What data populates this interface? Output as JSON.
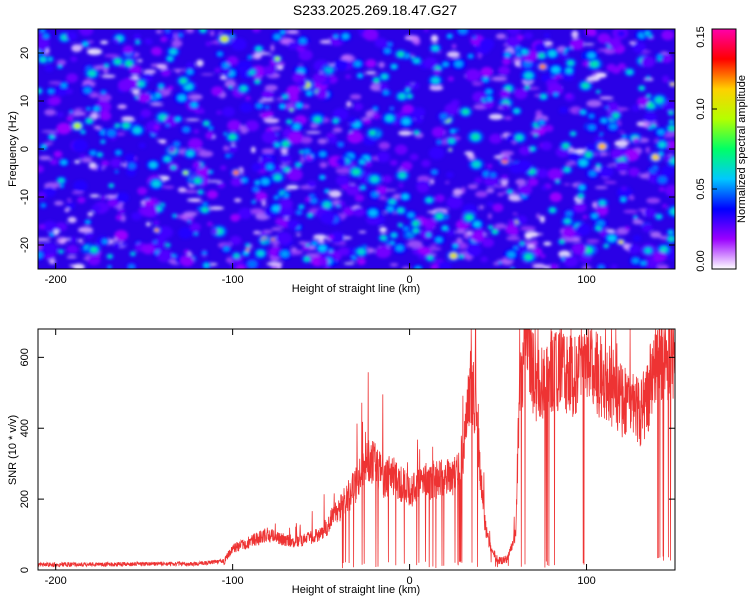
{
  "title": "S233.2025.269.18.47.G27",
  "chart_data": [
    {
      "type": "heatmap",
      "xlabel": "Height of straight line (km)",
      "ylabel": "Frequency (Hz)",
      "xlim": [
        -210,
        150
      ],
      "ylim": [
        -25,
        25
      ],
      "xticks": [
        -200,
        -100,
        0,
        100
      ],
      "yticks": [
        -20,
        -10,
        0,
        10,
        20
      ],
      "colorbar": {
        "label": "Normalized spectral amplitude",
        "range": [
          0,
          0.15
        ],
        "ticks": [
          "0.00",
          "0.05",
          "0.10",
          "0.15"
        ],
        "colors": [
          "#ffffff",
          "#9a00ff",
          "#0000ff",
          "#00c8ff",
          "#00ff66",
          "#b4ff00",
          "#ffd000",
          "#ff0000",
          "#ff00aa"
        ]
      },
      "value_distribution": {
        "background": 0.02,
        "typical_blob": 0.045,
        "max_blob": 0.12
      }
    },
    {
      "type": "line",
      "xlabel": "Height of straight line (km)",
      "ylabel": "SNR (10 * v/v)",
      "xlim": [
        -210,
        150
      ],
      "ylim": [
        0,
        680
      ],
      "xticks": [
        -200,
        -100,
        0,
        100
      ],
      "yticks": [
        0,
        200,
        400,
        600
      ],
      "color": "#ee3333",
      "envelope": {
        "x": [
          -210,
          -120,
          -105,
          -100,
          -80,
          -65,
          -50,
          -40,
          -30,
          -25,
          -20,
          -15,
          -10,
          -5,
          0,
          10,
          20,
          25,
          30,
          35,
          38,
          42,
          45,
          50,
          55,
          60,
          62,
          65,
          68,
          72,
          80,
          90,
          100,
          110,
          120,
          130,
          135,
          140,
          145,
          150
        ],
        "y": [
          15,
          18,
          25,
          60,
          100,
          80,
          100,
          170,
          240,
          310,
          300,
          260,
          270,
          245,
          220,
          250,
          260,
          250,
          330,
          540,
          400,
          150,
          70,
          25,
          30,
          100,
          480,
          650,
          600,
          520,
          560,
          540,
          570,
          540,
          480,
          440,
          500,
          610,
          600,
          600
        ]
      }
    }
  ]
}
